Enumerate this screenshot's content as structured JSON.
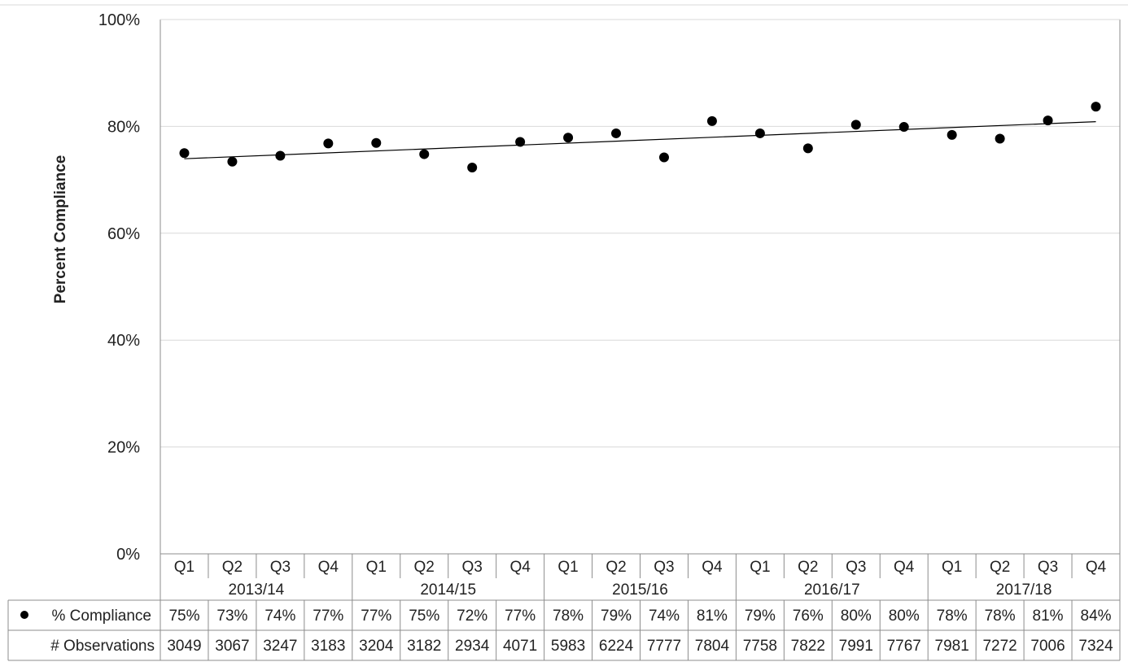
{
  "chart_data": {
    "type": "scatter",
    "title": "",
    "xlabel": "",
    "ylabel": "Percent Compliance",
    "ylim": [
      0,
      100
    ],
    "yticks": [
      0,
      20,
      40,
      60,
      80,
      100
    ],
    "ytick_labels": [
      "0%",
      "20%",
      "40%",
      "60%",
      "80%",
      "100%"
    ],
    "grid": true,
    "trendline": "linear",
    "categories": [
      "Q1",
      "Q2",
      "Q3",
      "Q4",
      "Q1",
      "Q2",
      "Q3",
      "Q4",
      "Q1",
      "Q2",
      "Q3",
      "Q4",
      "Q1",
      "Q2",
      "Q3",
      "Q4",
      "Q1",
      "Q2",
      "Q3",
      "Q4"
    ],
    "groups": [
      {
        "label": "2013/14",
        "count": 4
      },
      {
        "label": "2014/15",
        "count": 4
      },
      {
        "label": "2015/16",
        "count": 4
      },
      {
        "label": "2016/17",
        "count": 4
      },
      {
        "label": "2017/18",
        "count": 4
      }
    ],
    "series": [
      {
        "name": "% Compliance",
        "marker": "circle",
        "color": "#000000",
        "values": [
          75.0,
          73.4,
          74.5,
          76.8,
          76.9,
          74.8,
          72.3,
          77.1,
          77.9,
          78.7,
          74.2,
          81.0,
          78.7,
          75.9,
          80.3,
          79.9,
          78.4,
          77.7,
          81.1,
          83.7
        ],
        "labels": [
          "75%",
          "73%",
          "74%",
          "77%",
          "77%",
          "75%",
          "72%",
          "77%",
          "78%",
          "79%",
          "74%",
          "81%",
          "79%",
          "76%",
          "80%",
          "80%",
          "78%",
          "78%",
          "81%",
          "84%"
        ]
      }
    ],
    "table": {
      "rows": [
        {
          "label": "% Compliance",
          "legend_marker": "●",
          "source": "series"
        },
        {
          "label": "# Observations",
          "legend_marker": "",
          "values": [
            "3049",
            "3067",
            "3247",
            "3183",
            "3204",
            "3182",
            "2934",
            "4071",
            "5983",
            "6224",
            "7777",
            "7804",
            "7758",
            "7822",
            "7991",
            "7767",
            "7981",
            "7272",
            "7006",
            "7324"
          ]
        }
      ]
    }
  }
}
